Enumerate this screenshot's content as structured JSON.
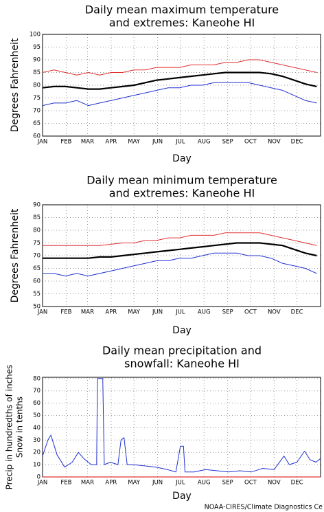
{
  "chart_data": [
    {
      "type": "line",
      "title": [
        "Daily mean maximum temperature",
        "and extremes: Kaneohe HI"
      ],
      "x_label": "Day",
      "y_label": [
        "Degrees Fahrenheit"
      ],
      "xlim": [
        1,
        366
      ],
      "xticks": [
        {
          "value": 1,
          "label": "JAN"
        },
        {
          "value": 32,
          "label": "FEB"
        },
        {
          "value": 60,
          "label": "MAR"
        },
        {
          "value": 91,
          "label": "APR"
        },
        {
          "value": 121,
          "label": "MAY"
        },
        {
          "value": 152,
          "label": "JUN"
        },
        {
          "value": 182,
          "label": "JUL"
        },
        {
          "value": 213,
          "label": "AUG"
        },
        {
          "value": 244,
          "label": "SEP"
        },
        {
          "value": 274,
          "label": "OCT"
        },
        {
          "value": 305,
          "label": "NOV"
        },
        {
          "value": 335,
          "label": "DEC"
        }
      ],
      "ylim": [
        60,
        100
      ],
      "yticks": [
        60,
        65,
        70,
        75,
        80,
        85,
        90,
        95,
        100
      ],
      "grid": true,
      "x": [
        1,
        16,
        31,
        46,
        61,
        76,
        91,
        106,
        121,
        136,
        151,
        166,
        181,
        196,
        211,
        226,
        241,
        256,
        271,
        286,
        301,
        316,
        331,
        346,
        361
      ],
      "series": [
        {
          "color": "#e03030",
          "width": 1,
          "values": [
            85,
            86,
            85,
            84,
            85,
            84,
            85,
            85,
            86,
            86,
            87,
            87,
            87,
            88,
            88,
            88,
            89,
            89,
            90,
            90,
            89,
            88,
            87,
            86,
            85
          ]
        },
        {
          "color": "#000000",
          "width": 2.2,
          "values": [
            79,
            79.5,
            79.5,
            79,
            78.5,
            78.5,
            79,
            79.5,
            80,
            81,
            82,
            82.5,
            83,
            83.5,
            84,
            84.5,
            85,
            85,
            85,
            85,
            84.5,
            83.5,
            82,
            80.5,
            79.5
          ]
        },
        {
          "color": "#2030d0",
          "width": 1,
          "values": [
            72,
            73,
            73,
            74,
            72,
            73,
            74,
            75,
            76,
            77,
            78,
            79,
            79,
            80,
            80,
            81,
            81,
            81,
            81,
            80,
            79,
            78,
            76,
            74,
            73
          ]
        }
      ]
    },
    {
      "type": "line",
      "title": [
        "Daily mean minimum temperature",
        "and extremes: Kaneohe HI"
      ],
      "x_label": "Day",
      "y_label": [
        "Degrees Fahrenheit"
      ],
      "xlim": [
        1,
        366
      ],
      "xticks": [
        {
          "value": 1,
          "label": "JAN"
        },
        {
          "value": 32,
          "label": "FEB"
        },
        {
          "value": 60,
          "label": "MAR"
        },
        {
          "value": 91,
          "label": "APR"
        },
        {
          "value": 121,
          "label": "MAY"
        },
        {
          "value": 152,
          "label": "JUN"
        },
        {
          "value": 182,
          "label": "JUL"
        },
        {
          "value": 213,
          "label": "AUG"
        },
        {
          "value": 244,
          "label": "SEP"
        },
        {
          "value": 274,
          "label": "OCT"
        },
        {
          "value": 305,
          "label": "NOV"
        },
        {
          "value": 335,
          "label": "DEC"
        }
      ],
      "ylim": [
        50,
        90
      ],
      "yticks": [
        50,
        55,
        60,
        65,
        70,
        75,
        80,
        85,
        90
      ],
      "grid": true,
      "x": [
        1,
        16,
        31,
        46,
        61,
        76,
        91,
        106,
        121,
        136,
        151,
        166,
        181,
        196,
        211,
        226,
        241,
        256,
        271,
        286,
        301,
        316,
        331,
        346,
        361
      ],
      "series": [
        {
          "color": "#e03030",
          "width": 1,
          "values": [
            74,
            74,
            74,
            74,
            74,
            74,
            74.5,
            75,
            75,
            76,
            76,
            77,
            77,
            78,
            78,
            78,
            79,
            79,
            79,
            79,
            78,
            77,
            76,
            75,
            74
          ]
        },
        {
          "color": "#000000",
          "width": 2.2,
          "values": [
            69,
            69,
            69,
            69,
            69,
            69.5,
            69.5,
            70,
            70.5,
            71,
            71.5,
            72,
            72.5,
            73,
            73.5,
            74,
            74.5,
            75,
            75,
            75,
            74.5,
            74,
            72.5,
            71,
            70
          ]
        },
        {
          "color": "#2030d0",
          "width": 1,
          "values": [
            63,
            63,
            62,
            63,
            62,
            63,
            64,
            65,
            66,
            67,
            68,
            68,
            69,
            69,
            70,
            71,
            71,
            71,
            70,
            70,
            69,
            67,
            66,
            65,
            63
          ]
        }
      ]
    },
    {
      "type": "line",
      "title": [
        "Daily mean precipitation and",
        "snowfall: Kaneohe HI"
      ],
      "x_label": "Day",
      "y_label": [
        "Precip in hundredths of inches",
        "Snow in tenths"
      ],
      "xlim": [
        1,
        366
      ],
      "xticks": [
        {
          "value": 1,
          "label": "JAN"
        },
        {
          "value": 32,
          "label": "FEB"
        },
        {
          "value": 60,
          "label": "MAR"
        },
        {
          "value": 91,
          "label": "APR"
        },
        {
          "value": 121,
          "label": "MAY"
        },
        {
          "value": 152,
          "label": "JUN"
        },
        {
          "value": 182,
          "label": "JUL"
        },
        {
          "value": 213,
          "label": "AUG"
        },
        {
          "value": 244,
          "label": "SEP"
        },
        {
          "value": 274,
          "label": "OCT"
        },
        {
          "value": 305,
          "label": "NOV"
        },
        {
          "value": 335,
          "label": "DEC"
        }
      ],
      "ylim": [
        0,
        81
      ],
      "yticks": [
        0,
        10,
        20,
        30,
        40,
        50,
        60,
        70,
        80
      ],
      "grid": true,
      "x": [
        1,
        8,
        12,
        20,
        30,
        40,
        48,
        55,
        65,
        72,
        73,
        80,
        82,
        90,
        100,
        104,
        108,
        112,
        120,
        135,
        150,
        165,
        176,
        182,
        186,
        188,
        200,
        215,
        230,
        245,
        260,
        275,
        290,
        305,
        318,
        325,
        335,
        345,
        352,
        360,
        366
      ],
      "series": [
        {
          "color": "#2030d0",
          "width": 1,
          "values": [
            17,
            30,
            34,
            18,
            8,
            12,
            20,
            15,
            10,
            10,
            80,
            80,
            10,
            12,
            10,
            30,
            32,
            10,
            10,
            9,
            8,
            6,
            4,
            25,
            25,
            4,
            4,
            6,
            5,
            4,
            5,
            4,
            7,
            6,
            17,
            10,
            12,
            21,
            14,
            12,
            15
          ]
        },
        {
          "color": "#e03030",
          "width": 1.2,
          "values": [
            0,
            0,
            0,
            0,
            0,
            0,
            0,
            0,
            0,
            0,
            0,
            0,
            0,
            0,
            0,
            0,
            0,
            0,
            0,
            0,
            0,
            0,
            0,
            0,
            0,
            0,
            0,
            0,
            0,
            0,
            0,
            0,
            0,
            0,
            0,
            0,
            0,
            0,
            0,
            0,
            0
          ]
        }
      ]
    }
  ],
  "footer": "NOAA-CIRES/Climate Diagnostics Ce"
}
